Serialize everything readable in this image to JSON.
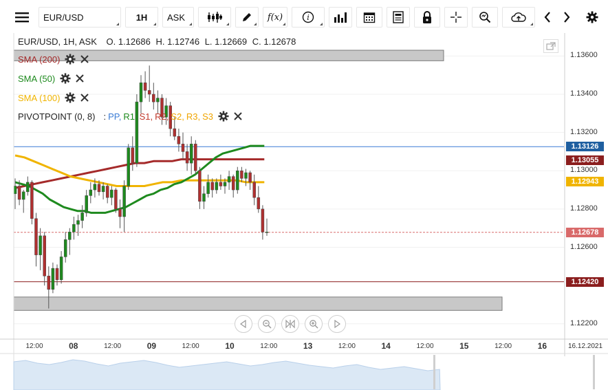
{
  "toolbar": {
    "symbol": "EUR/USD",
    "interval": "1H",
    "price_type": "ASK"
  },
  "header": {
    "ohlc_title": "EUR/USD, 1H, ASK",
    "open": "O. 1.12686",
    "high": "H. 1.12746",
    "low": "L. 1.12669",
    "close": "C. 1.12678"
  },
  "indicators": {
    "sma200": {
      "label": "SMA (200)",
      "color": "#a52a2a"
    },
    "sma50": {
      "label": "SMA (50)",
      "color": "#1e8a1e"
    },
    "sma100": {
      "label": "SMA (100)",
      "color": "#f0b400"
    },
    "pivot": {
      "label": "PIVOTPOINT (0, 8)",
      "sep": ":",
      "pp": "PP,",
      "r1": "R1,",
      "s1": "S1,",
      "r2": "R2,",
      "s2": "S2,",
      "r3": "R3,",
      "s3": "S3"
    }
  },
  "colors": {
    "pp": "#3a7bd5",
    "r1": "#1e8a1e",
    "s1": "#c0392b",
    "r2": "#c0392b",
    "s2": "#f0a500",
    "r3": "#f0a500",
    "s3": "#f0a500",
    "up_candle": "#1e8a1e",
    "down_candle": "#b03030",
    "grid": "#eeeeee"
  },
  "price_tags": [
    {
      "label": "1.13126",
      "value": 1.13126,
      "color": "#1f5fa0"
    },
    {
      "label": "1.13055",
      "value": 1.13055,
      "color": "#8b1e1e"
    },
    {
      "label": "1.12943",
      "value": 1.12943,
      "color": "#f0b400"
    },
    {
      "label": "1.12678",
      "value": 1.12678,
      "color": "#d96a6a"
    },
    {
      "label": "1.12420",
      "value": 1.1242,
      "color": "#8b1e1e"
    }
  ],
  "date_label": "16.12.2021",
  "chart_data": {
    "type": "candlestick",
    "title": "EUR/USD, 1H, ASK",
    "ylim": [
      1.1212,
      1.1372
    ],
    "y_ticks": [
      "1.13600",
      "1.13400",
      "1.13200",
      "1.13000",
      "1.12800",
      "1.12600",
      "1.12200"
    ],
    "y_tick_values": [
      1.136,
      1.134,
      1.132,
      1.13,
      1.128,
      1.126,
      1.122
    ],
    "x_ticks": [
      {
        "label": "12:00",
        "major": false
      },
      {
        "label": "08",
        "major": true
      },
      {
        "label": "12:00",
        "major": false
      },
      {
        "label": "09",
        "major": true
      },
      {
        "label": "12:00",
        "major": false
      },
      {
        "label": "10",
        "major": true
      },
      {
        "label": "12:00",
        "major": false
      },
      {
        "label": "13",
        "major": true
      },
      {
        "label": "12:00",
        "major": false
      },
      {
        "label": "14",
        "major": true
      },
      {
        "label": "12:00",
        "major": false
      },
      {
        "label": "15",
        "major": true
      },
      {
        "label": "12:00",
        "major": false
      },
      {
        "label": "16",
        "major": true
      }
    ],
    "candles": [
      {
        "o": 1.1288,
        "h": 1.1296,
        "l": 1.128,
        "c": 1.1292
      },
      {
        "o": 1.1292,
        "h": 1.1295,
        "l": 1.1282,
        "c": 1.1285
      },
      {
        "o": 1.1285,
        "h": 1.129,
        "l": 1.1278,
        "c": 1.1289
      },
      {
        "o": 1.1289,
        "h": 1.1297,
        "l": 1.1287,
        "c": 1.1294
      },
      {
        "o": 1.1294,
        "h": 1.1295,
        "l": 1.1272,
        "c": 1.1275
      },
      {
        "o": 1.1275,
        "h": 1.1278,
        "l": 1.125,
        "c": 1.1256
      },
      {
        "o": 1.1256,
        "h": 1.127,
        "l": 1.1248,
        "c": 1.1266
      },
      {
        "o": 1.1266,
        "h": 1.1268,
        "l": 1.124,
        "c": 1.1245
      },
      {
        "o": 1.1245,
        "h": 1.125,
        "l": 1.1228,
        "c": 1.1238
      },
      {
        "o": 1.1238,
        "h": 1.1252,
        "l": 1.1236,
        "c": 1.1249
      },
      {
        "o": 1.1249,
        "h": 1.1251,
        "l": 1.124,
        "c": 1.1243
      },
      {
        "o": 1.1243,
        "h": 1.1258,
        "l": 1.1241,
        "c": 1.1255
      },
      {
        "o": 1.1255,
        "h": 1.1268,
        "l": 1.1252,
        "c": 1.1264
      },
      {
        "o": 1.1264,
        "h": 1.127,
        "l": 1.1256,
        "c": 1.1268
      },
      {
        "o": 1.1268,
        "h": 1.1276,
        "l": 1.1264,
        "c": 1.1272
      },
      {
        "o": 1.1272,
        "h": 1.1277,
        "l": 1.1266,
        "c": 1.1274
      },
      {
        "o": 1.1274,
        "h": 1.1282,
        "l": 1.127,
        "c": 1.1278
      },
      {
        "o": 1.1278,
        "h": 1.129,
        "l": 1.1276,
        "c": 1.1287
      },
      {
        "o": 1.1287,
        "h": 1.1294,
        "l": 1.1283,
        "c": 1.129
      },
      {
        "o": 1.129,
        "h": 1.1296,
        "l": 1.1286,
        "c": 1.1293
      },
      {
        "o": 1.1293,
        "h": 1.1295,
        "l": 1.1287,
        "c": 1.1289
      },
      {
        "o": 1.1289,
        "h": 1.1294,
        "l": 1.1285,
        "c": 1.1292
      },
      {
        "o": 1.1292,
        "h": 1.1293,
        "l": 1.1283,
        "c": 1.1286
      },
      {
        "o": 1.1286,
        "h": 1.1292,
        "l": 1.1282,
        "c": 1.129
      },
      {
        "o": 1.129,
        "h": 1.1291,
        "l": 1.1278,
        "c": 1.128
      },
      {
        "o": 1.128,
        "h": 1.1285,
        "l": 1.127,
        "c": 1.1276
      },
      {
        "o": 1.1276,
        "h": 1.1295,
        "l": 1.1268,
        "c": 1.1292
      },
      {
        "o": 1.1292,
        "h": 1.1314,
        "l": 1.129,
        "c": 1.1312
      },
      {
        "o": 1.1312,
        "h": 1.1318,
        "l": 1.13,
        "c": 1.1304
      },
      {
        "o": 1.1304,
        "h": 1.134,
        "l": 1.1302,
        "c": 1.1336
      },
      {
        "o": 1.1336,
        "h": 1.135,
        "l": 1.133,
        "c": 1.1346
      },
      {
        "o": 1.1346,
        "h": 1.1352,
        "l": 1.1338,
        "c": 1.1342
      },
      {
        "o": 1.1342,
        "h": 1.1355,
        "l": 1.1336,
        "c": 1.134
      },
      {
        "o": 1.134,
        "h": 1.1346,
        "l": 1.1332,
        "c": 1.1336
      },
      {
        "o": 1.1336,
        "h": 1.1342,
        "l": 1.133,
        "c": 1.1338
      },
      {
        "o": 1.1338,
        "h": 1.134,
        "l": 1.1324,
        "c": 1.1328
      },
      {
        "o": 1.1328,
        "h": 1.1338,
        "l": 1.1324,
        "c": 1.1334
      },
      {
        "o": 1.1334,
        "h": 1.1336,
        "l": 1.1318,
        "c": 1.1322
      },
      {
        "o": 1.1322,
        "h": 1.1328,
        "l": 1.1316,
        "c": 1.1318
      },
      {
        "o": 1.1318,
        "h": 1.1322,
        "l": 1.131,
        "c": 1.1314
      },
      {
        "o": 1.1314,
        "h": 1.132,
        "l": 1.1306,
        "c": 1.131
      },
      {
        "o": 1.131,
        "h": 1.1314,
        "l": 1.13,
        "c": 1.1304
      },
      {
        "o": 1.1304,
        "h": 1.1318,
        "l": 1.1298,
        "c": 1.1314
      },
      {
        "o": 1.1314,
        "h": 1.1316,
        "l": 1.1298,
        "c": 1.13
      },
      {
        "o": 1.13,
        "h": 1.1302,
        "l": 1.128,
        "c": 1.1284
      },
      {
        "o": 1.1284,
        "h": 1.1292,
        "l": 1.128,
        "c": 1.1288
      },
      {
        "o": 1.1288,
        "h": 1.1298,
        "l": 1.1286,
        "c": 1.1294
      },
      {
        "o": 1.1294,
        "h": 1.1296,
        "l": 1.1286,
        "c": 1.129
      },
      {
        "o": 1.129,
        "h": 1.1296,
        "l": 1.1288,
        "c": 1.1294
      },
      {
        "o": 1.1294,
        "h": 1.1298,
        "l": 1.129,
        "c": 1.1292
      },
      {
        "o": 1.1292,
        "h": 1.1296,
        "l": 1.1288,
        "c": 1.1294
      },
      {
        "o": 1.1294,
        "h": 1.13,
        "l": 1.129,
        "c": 1.1297
      },
      {
        "o": 1.1297,
        "h": 1.1298,
        "l": 1.1286,
        "c": 1.129
      },
      {
        "o": 1.129,
        "h": 1.1302,
        "l": 1.1288,
        "c": 1.13
      },
      {
        "o": 1.13,
        "h": 1.1302,
        "l": 1.1294,
        "c": 1.1296
      },
      {
        "o": 1.1296,
        "h": 1.1301,
        "l": 1.1292,
        "c": 1.1299
      },
      {
        "o": 1.1299,
        "h": 1.13,
        "l": 1.129,
        "c": 1.1294
      },
      {
        "o": 1.1294,
        "h": 1.1298,
        "l": 1.1282,
        "c": 1.1286
      },
      {
        "o": 1.1286,
        "h": 1.1292,
        "l": 1.1278,
        "c": 1.128
      },
      {
        "o": 1.128,
        "h": 1.1282,
        "l": 1.1264,
        "c": 1.1268
      },
      {
        "o": 1.1268,
        "h": 1.1275,
        "l": 1.1266,
        "c": 1.1268
      }
    ],
    "sma50": [
      1.1294,
      1.1293,
      1.1292,
      1.129,
      1.1288,
      1.1285,
      1.1283,
      1.1281,
      1.128,
      1.1279,
      1.1279,
      1.1278,
      1.1278,
      1.1278,
      1.1279,
      1.128,
      1.1281,
      1.1283,
      1.1285,
      1.1287,
      1.1288,
      1.129,
      1.1291,
      1.1293,
      1.1294,
      1.1296,
      1.1298,
      1.1301,
      1.1304,
      1.1307,
      1.1309,
      1.131,
      1.1311,
      1.1312,
      1.1313,
      1.1313,
      1.1313
    ],
    "sma100": [
      1.1308,
      1.1307,
      1.1305,
      1.1303,
      1.1301,
      1.1299,
      1.1297,
      1.1296,
      1.1295,
      1.1294,
      1.1293,
      1.1292,
      1.1292,
      1.1292,
      1.1292,
      1.1293,
      1.1294,
      1.1294,
      1.1295,
      1.1295,
      1.1295,
      1.1295,
      1.1295,
      1.1295,
      1.1295,
      1.1294,
      1.1294,
      1.1294
    ],
    "sma200": [
      1.1291,
      1.1292,
      1.1293,
      1.1294,
      1.1295,
      1.1296,
      1.1297,
      1.1298,
      1.1299,
      1.13,
      1.1301,
      1.1302,
      1.1303,
      1.1304,
      1.1304,
      1.1305,
      1.1305,
      1.1305,
      1.1306,
      1.1306,
      1.1306,
      1.1306,
      1.1306,
      1.1306,
      1.1306,
      1.1306,
      1.1306,
      1.1306
    ],
    "hlines": [
      {
        "value": 1.13126,
        "color": "#3a7bd5",
        "style": "solid"
      },
      {
        "value": 1.12678,
        "color": "#d96a6a",
        "style": "dashed"
      },
      {
        "value": 1.1242,
        "color": "#8b1e1e",
        "style": "solid"
      }
    ],
    "zones": [
      {
        "from": 1.13575,
        "to": 1.1363,
        "end": "mid"
      },
      {
        "from": 1.1227,
        "to": 1.1234,
        "end": "far"
      }
    ]
  }
}
